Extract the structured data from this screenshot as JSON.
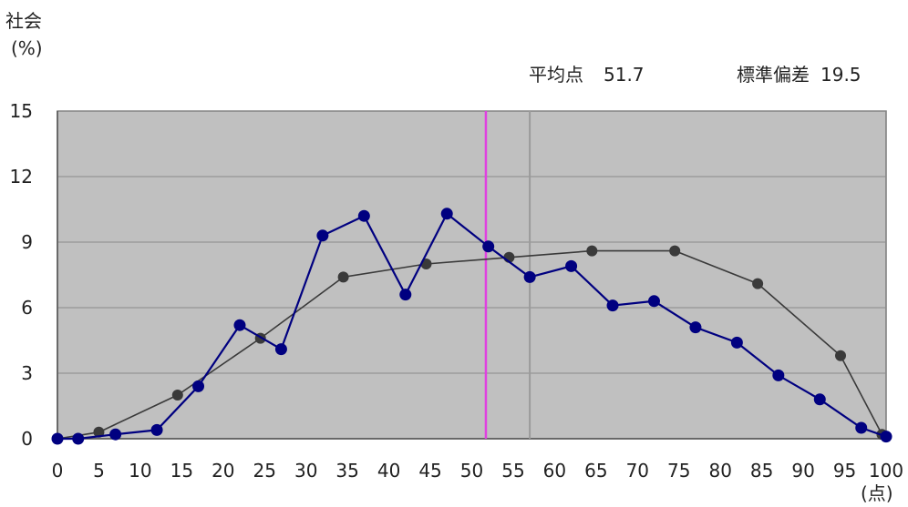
{
  "chart_data": {
    "type": "line",
    "title": "社会",
    "ylabel": "(%)",
    "xlabel": "(点)",
    "xlim": [
      0,
      100
    ],
    "ylim": [
      0,
      15
    ],
    "x_ticks": [
      0,
      5,
      10,
      15,
      20,
      25,
      30,
      35,
      40,
      45,
      50,
      55,
      60,
      65,
      70,
      75,
      80,
      85,
      90,
      95,
      100
    ],
    "y_ticks": [
      0,
      3,
      6,
      9,
      12,
      15
    ],
    "grid": true,
    "stats": {
      "mean_label": "平均点",
      "mean_value": "51.7",
      "sd_label": "標準偏差",
      "sd_value": "19.5"
    },
    "mean_line_x": 51.7,
    "median_line_x": 57,
    "colors": {
      "series_actual": "#000080",
      "series_normal": "#3a3a3a",
      "mean_line": "#e040e0",
      "median_line": "#9a9a9a",
      "plot_bg": "#c0c0c0",
      "grid": "#8a8a8a"
    },
    "series": [
      {
        "x": [
          0,
          2.5,
          7,
          12,
          17,
          22,
          27,
          32,
          37,
          42,
          47,
          52,
          57,
          62,
          67,
          72,
          77,
          82,
          87,
          92,
          97,
          100
        ],
        "y": [
          0,
          0,
          0.2,
          0.4,
          2.4,
          5.2,
          4.1,
          9.3,
          10.2,
          6.6,
          10.3,
          8.8,
          7.4,
          7.9,
          6.1,
          6.3,
          5.1,
          4.4,
          2.9,
          1.8,
          0.5,
          0.1
        ]
      },
      {
        "x": [
          0,
          5,
          14.5,
          24.5,
          34.5,
          44.5,
          54.5,
          64.5,
          74.5,
          84.5,
          94.5,
          99.5
        ],
        "y": [
          0,
          0.3,
          2.0,
          4.6,
          7.4,
          8.0,
          8.3,
          8.6,
          8.6,
          7.1,
          3.8,
          0.2
        ]
      }
    ]
  }
}
